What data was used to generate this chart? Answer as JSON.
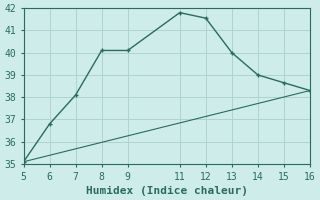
{
  "xlabel": "Humidex (Indice chaleur)",
  "ylabel": "",
  "line1_x": [
    5,
    6,
    7,
    8,
    9,
    11,
    12,
    13,
    14,
    15,
    16
  ],
  "line1_y": [
    35.1,
    36.8,
    38.1,
    40.1,
    40.1,
    41.8,
    41.55,
    40.0,
    39.0,
    38.65,
    38.3
  ],
  "line2_x": [
    5,
    16
  ],
  "line2_y": [
    35.1,
    38.3
  ],
  "line_color": "#2a6b60",
  "bg_color": "#cdecea",
  "grid_color": "#afd4d0",
  "xlim": [
    5,
    16
  ],
  "ylim": [
    35,
    42
  ],
  "xticks": [
    5,
    6,
    7,
    8,
    9,
    11,
    12,
    13,
    14,
    15,
    16
  ],
  "yticks": [
    35,
    36,
    37,
    38,
    39,
    40,
    41,
    42
  ],
  "tick_fontsize": 7,
  "xlabel_fontsize": 8,
  "marker": "+"
}
